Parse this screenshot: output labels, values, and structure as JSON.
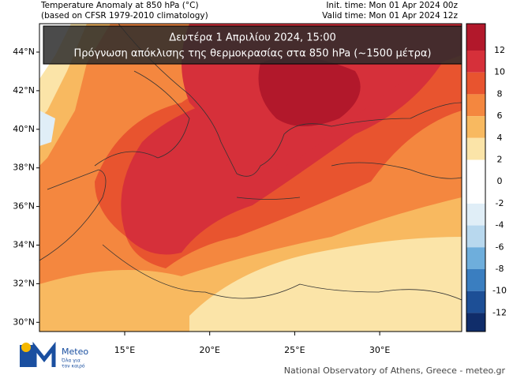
{
  "header": {
    "title": "Temperature Anomaly at 850 hPa (°C)",
    "subtitle": "(based on CFSR 1979-2010 climatology)",
    "init_time": "Init. time: Mon 01 Apr 2024 00z",
    "valid_time": "Valid time: Mon 01 Apr 2024 12z"
  },
  "banner": {
    "line1": "Δευτέρα 1 Απριλίου 2024, 15:00",
    "line2": "Πρόγνωση απόκλισης της θερμοκρασίας στα 850 hPa (~1500 μέτρα)"
  },
  "lat_labels": [
    "44°N",
    "42°N",
    "40°N",
    "38°N",
    "36°N",
    "34°N",
    "32°N",
    "30°N"
  ],
  "lon_labels": [
    "15°E",
    "20°E",
    "25°E",
    "30°E"
  ],
  "colorbar_labels": [
    12,
    10,
    8,
    6,
    4,
    2,
    0,
    -2,
    -4,
    -6,
    -8,
    -10,
    -12
  ],
  "logo": {
    "name": "Meteo",
    "tagline_1": "Όλα για",
    "tagline_2": "τον καιρό"
  },
  "footer": "National Observatory of Athens, Greece - meteo.gr"
}
